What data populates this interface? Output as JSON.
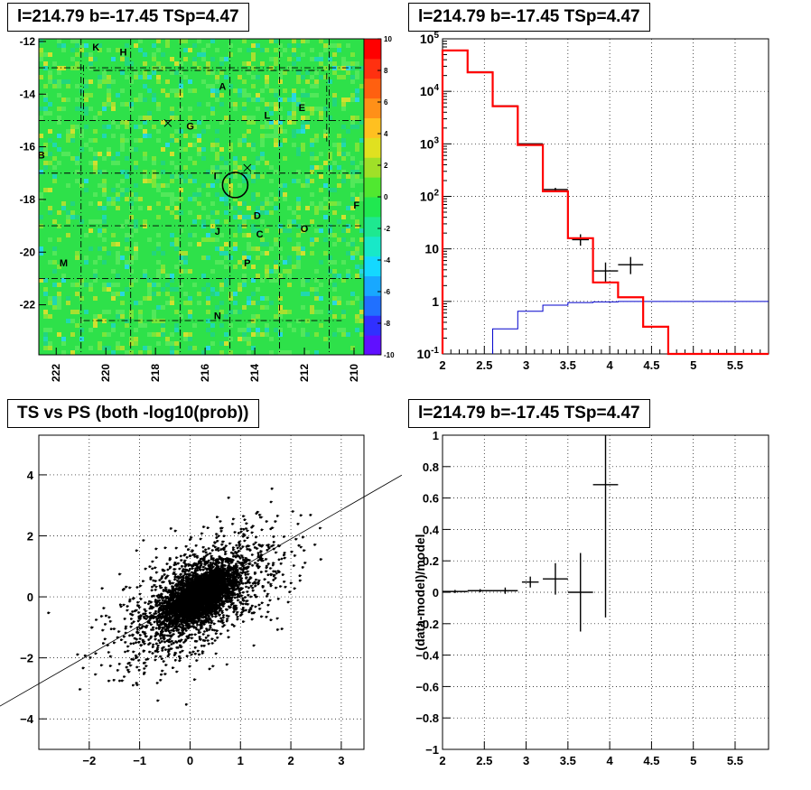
{
  "chart_data": [
    {
      "type": "heatmap",
      "title": "l=214.79 b=-17.45 TSp=4.47",
      "x_ticks": [
        222,
        220,
        218,
        216,
        214,
        212,
        210
      ],
      "y_ticks": [
        -12,
        -14,
        -16,
        -18,
        -20,
        -22
      ],
      "xlim": [
        222.7,
        209.6
      ],
      "ylim": [
        -23.9,
        -11.9
      ],
      "colorbar": {
        "ticks": [
          10,
          8,
          6,
          4,
          2,
          0,
          -2,
          -4,
          -6,
          -8,
          -10
        ],
        "range": [
          -10,
          10
        ]
      },
      "source_labels": [
        {
          "label": "K",
          "l": 220.4,
          "b": -12.2
        },
        {
          "label": "H",
          "l": 219.3,
          "b": -12.4
        },
        {
          "label": "A",
          "l": 215.3,
          "b": -13.7
        },
        {
          "label": "E",
          "l": 212.1,
          "b": -14.5
        },
        {
          "label": "L",
          "l": 213.5,
          "b": -14.8
        },
        {
          "label": "G",
          "l": 216.6,
          "b": -15.2
        },
        {
          "label": "B",
          "l": 222.6,
          "b": -16.3
        },
        {
          "label": "I",
          "l": 215.6,
          "b": -17.1
        },
        {
          "label": "F",
          "l": 209.9,
          "b": -18.2
        },
        {
          "label": "D",
          "l": 213.9,
          "b": -18.6
        },
        {
          "label": "O",
          "l": 212.0,
          "b": -19.1
        },
        {
          "label": "J",
          "l": 215.5,
          "b": -19.2
        },
        {
          "label": "C",
          "l": 213.8,
          "b": -19.3
        },
        {
          "label": "M",
          "l": 221.7,
          "b": -20.4
        },
        {
          "label": "P",
          "l": 214.3,
          "b": -20.4
        },
        {
          "label": "N",
          "l": 215.5,
          "b": -22.4
        }
      ],
      "markers": [
        {
          "type": "cross",
          "l": 217.5,
          "b": -15.1
        },
        {
          "type": "cross",
          "l": 214.3,
          "b": -16.8
        },
        {
          "type": "circle",
          "l": 214.79,
          "b": -17.45
        }
      ]
    },
    {
      "type": "line",
      "title": "l=214.79 b=-17.45 TSp=4.47",
      "log_y": true,
      "xlim": [
        2,
        5.9
      ],
      "ylim": [
        0.1,
        100000
      ],
      "x_ticks": [
        2,
        2.5,
        3,
        3.5,
        4,
        4.5,
        5,
        5.5
      ],
      "y_tick_labels": [
        "10^-1",
        "1",
        "10",
        "10^2",
        "10^3",
        "10^4",
        "10^5"
      ],
      "grid": true,
      "model_total": {
        "color": "#ff0000",
        "edges": [
          2,
          2.3,
          2.6,
          2.9,
          3.2,
          3.5,
          3.8,
          4.1,
          4.4,
          4.7,
          5.0,
          5.9
        ],
        "values": [
          60000,
          23000,
          5200,
          950,
          125,
          16,
          2.3,
          1.2,
          0.33,
          0.1,
          0.1
        ]
      },
      "signal_model": {
        "color": "#0000cc",
        "edges": [
          2.6,
          2.9,
          3.2,
          3.5,
          3.8,
          4.1,
          5.9
        ],
        "values": [
          0.3,
          0.65,
          0.85,
          0.95,
          0.98,
          1.0
        ]
      },
      "data": {
        "color": "#000000",
        "points": [
          {
            "x": 2.15,
            "y": 60000,
            "xerr": 0.15,
            "ylo": 59500,
            "yhi": 60500
          },
          {
            "x": 2.45,
            "y": 23500,
            "xerr": 0.15,
            "ylo": 23300,
            "yhi": 23700
          },
          {
            "x": 2.75,
            "y": 5300,
            "xerr": 0.15,
            "ylo": 5220,
            "yhi": 5380
          },
          {
            "x": 3.05,
            "y": 1000,
            "xerr": 0.15,
            "ylo": 970,
            "yhi": 1030
          },
          {
            "x": 3.35,
            "y": 135,
            "xerr": 0.15,
            "ylo": 124,
            "yhi": 146
          },
          {
            "x": 3.65,
            "y": 15,
            "xerr": 0.1,
            "ylo": 11.5,
            "yhi": 19
          },
          {
            "x": 3.95,
            "y": 3.8,
            "xerr": 0.15,
            "ylo": 2.3,
            "yhi": 5.5
          },
          {
            "x": 4.25,
            "y": 5,
            "xerr": 0.15,
            "ylo": 3.3,
            "yhi": 7
          }
        ]
      }
    },
    {
      "type": "scatter",
      "title": "TS vs PS (both -log10(prob))",
      "xlim": [
        -3.0,
        3.45
      ],
      "ylim": [
        -5.0,
        5.3
      ],
      "x_ticks": [
        -2,
        -1,
        0,
        1,
        2,
        3
      ],
      "y_ticks": [
        -4,
        -2,
        0,
        2,
        4
      ],
      "grid": true,
      "fit_line": {
        "slope": 0.95,
        "intercept": 0
      },
      "cloud": {
        "n_points": 5200,
        "center": [
          0.2,
          0.05
        ],
        "sigma_core": [
          0.3,
          0.4
        ],
        "correlation": 0.6
      }
    },
    {
      "type": "scatter",
      "title": "l=214.79 b=-17.45 TSp=4.47",
      "ylabel": "(data-model)/model",
      "xlim": [
        2,
        5.9
      ],
      "ylim": [
        -1,
        1
      ],
      "x_ticks": [
        2,
        2.5,
        3,
        3.5,
        4,
        4.5,
        5,
        5.5
      ],
      "y_ticks": [
        -1,
        -0.8,
        -0.6,
        -0.4,
        -0.2,
        0,
        0.2,
        0.4,
        0.6,
        0.8,
        1
      ],
      "grid": true,
      "points": [
        {
          "x": 2.15,
          "y": 0.005,
          "xerr": 0.15,
          "yerr": 0.01
        },
        {
          "x": 2.45,
          "y": 0.01,
          "xerr": 0.15,
          "yerr": 0.01
        },
        {
          "x": 2.75,
          "y": 0.01,
          "xerr": 0.15,
          "yerr": 0.02
        },
        {
          "x": 3.05,
          "y": 0.065,
          "xerr": 0.1,
          "yerr": 0.035
        },
        {
          "x": 3.35,
          "y": 0.085,
          "xerr": 0.15,
          "yerr": 0.1
        },
        {
          "x": 3.65,
          "y": 0.0,
          "xerr": 0.15,
          "yerr": 0.25
        },
        {
          "x": 3.95,
          "y": 0.685,
          "xerr": 0.15,
          "ylo": -0.16,
          "yhi": 1.0
        }
      ]
    }
  ]
}
